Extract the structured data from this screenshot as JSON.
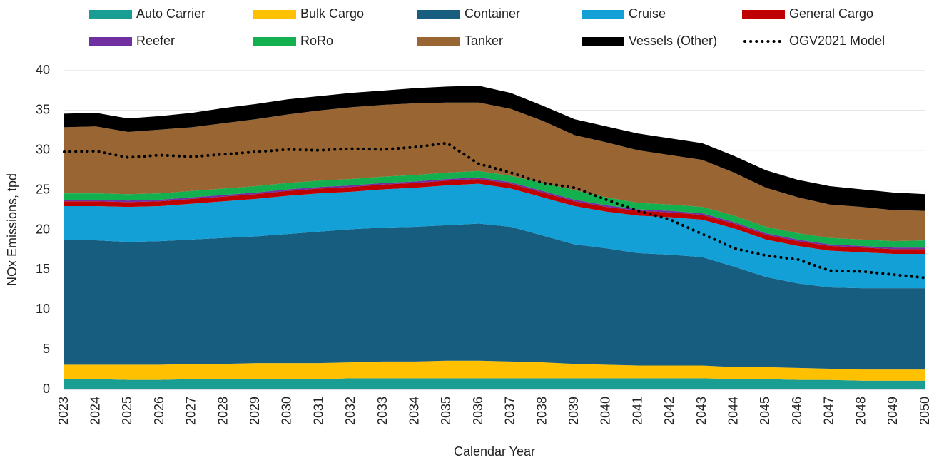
{
  "chart_data": {
    "type": "stacked_area",
    "categories": [
      "2023",
      "2024",
      "2025",
      "2026",
      "2027",
      "2028",
      "2029",
      "2030",
      "2031",
      "2032",
      "2033",
      "2034",
      "2035",
      "2036",
      "2037",
      "2038",
      "2039",
      "2040",
      "2041",
      "2042",
      "2043",
      "2044",
      "2045",
      "2046",
      "2047",
      "2048",
      "2049",
      "2050"
    ],
    "x_label": "Calendar Year",
    "y_label": "NOx Emissions, tpd",
    "ylim": [
      0,
      40
    ],
    "yticks": [
      0,
      5,
      10,
      15,
      20,
      25,
      30,
      35,
      40
    ],
    "grid": true,
    "series": [
      {
        "name": "Auto Carrier",
        "color": "#1a9e94",
        "values": [
          1.3,
          1.3,
          1.2,
          1.2,
          1.3,
          1.3,
          1.3,
          1.3,
          1.3,
          1.4,
          1.4,
          1.4,
          1.4,
          1.4,
          1.4,
          1.4,
          1.4,
          1.4,
          1.4,
          1.4,
          1.4,
          1.3,
          1.3,
          1.2,
          1.2,
          1.1,
          1.1,
          1.1
        ]
      },
      {
        "name": "Bulk Cargo",
        "color": "#ffc000",
        "values": [
          1.8,
          1.8,
          1.9,
          1.9,
          1.9,
          1.9,
          2.0,
          2.0,
          2.0,
          2.0,
          2.1,
          2.1,
          2.2,
          2.2,
          2.1,
          2.0,
          1.8,
          1.7,
          1.6,
          1.6,
          1.6,
          1.5,
          1.5,
          1.5,
          1.4,
          1.4,
          1.4,
          1.4
        ]
      },
      {
        "name": "Container",
        "color": "#175d80",
        "values": [
          15.6,
          15.6,
          15.4,
          15.5,
          15.6,
          15.8,
          15.9,
          16.2,
          16.5,
          16.7,
          16.8,
          16.9,
          17.0,
          17.2,
          16.9,
          15.9,
          15.0,
          14.6,
          14.1,
          13.9,
          13.6,
          12.6,
          11.3,
          10.6,
          10.2,
          10.2,
          10.2,
          10.2
        ]
      },
      {
        "name": "Cruise",
        "color": "#12a0d7",
        "values": [
          4.3,
          4.3,
          4.4,
          4.4,
          4.5,
          4.6,
          4.7,
          4.8,
          4.8,
          4.7,
          4.8,
          4.9,
          5.0,
          5.0,
          4.8,
          4.8,
          4.8,
          4.6,
          4.7,
          4.7,
          4.7,
          4.8,
          4.7,
          4.7,
          4.6,
          4.5,
          4.3,
          4.3
        ]
      },
      {
        "name": "General Cargo",
        "color": "#c00000",
        "values": [
          0.6,
          0.6,
          0.6,
          0.6,
          0.6,
          0.6,
          0.6,
          0.6,
          0.6,
          0.6,
          0.6,
          0.6,
          0.6,
          0.6,
          0.6,
          0.6,
          0.6,
          0.6,
          0.6,
          0.6,
          0.6,
          0.6,
          0.6,
          0.6,
          0.6,
          0.6,
          0.6,
          0.6
        ]
      },
      {
        "name": "Reefer",
        "color": "#7030a0",
        "values": [
          0.2,
          0.2,
          0.2,
          0.2,
          0.2,
          0.2,
          0.2,
          0.2,
          0.2,
          0.2,
          0.2,
          0.2,
          0.2,
          0.2,
          0.2,
          0.2,
          0.2,
          0.2,
          0.2,
          0.2,
          0.2,
          0.2,
          0.2,
          0.2,
          0.2,
          0.2,
          0.2,
          0.2
        ]
      },
      {
        "name": "RoRo",
        "color": "#13b050",
        "values": [
          0.8,
          0.8,
          0.8,
          0.8,
          0.8,
          0.8,
          0.8,
          0.8,
          0.8,
          0.8,
          0.8,
          0.8,
          0.8,
          0.8,
          0.8,
          1.0,
          1.2,
          1.0,
          0.8,
          0.8,
          0.8,
          0.8,
          0.8,
          0.8,
          0.8,
          0.8,
          0.8,
          0.9
        ]
      },
      {
        "name": "Tanker",
        "color": "#996633",
        "values": [
          8.3,
          8.4,
          7.8,
          8.0,
          8.0,
          8.2,
          8.4,
          8.6,
          8.8,
          9.0,
          9.0,
          9.0,
          8.8,
          8.6,
          8.4,
          7.8,
          6.9,
          6.9,
          6.6,
          6.2,
          5.9,
          5.4,
          4.9,
          4.5,
          4.2,
          4.1,
          3.9,
          3.7
        ]
      },
      {
        "name": "Vessels (Other)",
        "color": "#000000",
        "values": [
          1.7,
          1.7,
          1.7,
          1.7,
          1.8,
          1.9,
          1.9,
          1.9,
          1.8,
          1.8,
          1.8,
          1.9,
          2.0,
          2.1,
          2.0,
          1.9,
          2.0,
          2.0,
          2.1,
          2.1,
          2.1,
          2.1,
          2.2,
          2.2,
          2.3,
          2.2,
          2.2,
          2.1
        ]
      },
      {
        "name": "OGV2021 Model",
        "color": "#000000",
        "type": "line",
        "values": [
          29.8,
          29.9,
          29.1,
          29.4,
          29.2,
          29.5,
          29.8,
          30.1,
          30.0,
          30.2,
          30.1,
          30.4,
          30.9,
          28.3,
          27.2,
          25.9,
          25.3,
          23.8,
          22.4,
          21.3,
          19.5,
          17.7,
          16.8,
          16.3,
          14.9,
          14.8,
          14.4,
          14.0
        ]
      }
    ]
  }
}
